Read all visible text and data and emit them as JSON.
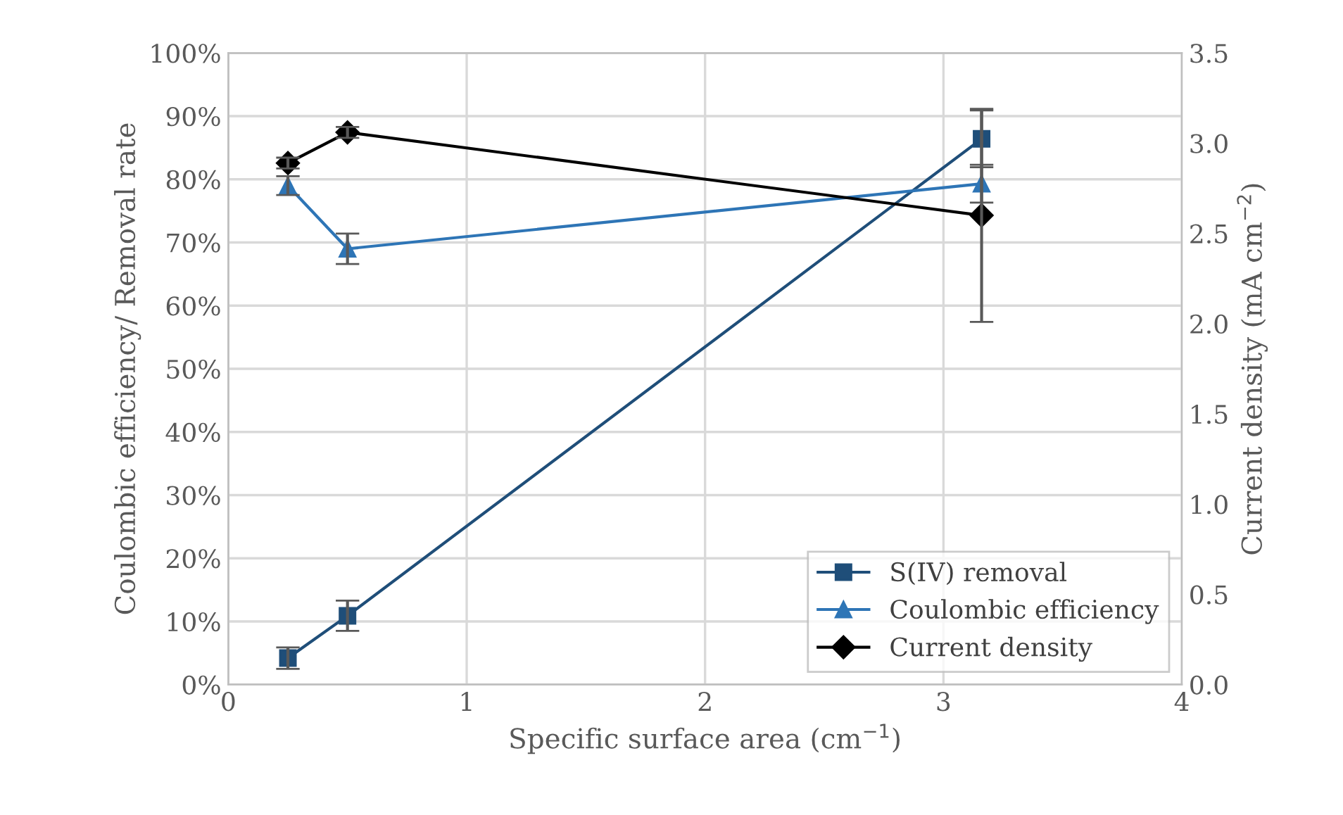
{
  "chart_data": {
    "type": "line",
    "xlabel": "Specific surface area (cm$^{−1}$)",
    "ylabel": "Coulombic efficiency/ Removal rate",
    "y2label": "Current density (mA cm$^{−2}$)",
    "x": [
      0.25,
      0.5,
      3.16
    ],
    "series": [
      {
        "name": "S(IV) removal",
        "color": "#1f4e79",
        "marker": "square",
        "values": [
          4.2,
          10.9,
          86.4
        ],
        "errors": [
          1.7,
          2.4,
          4.5
        ]
      },
      {
        "name": "Coulombic efficiency",
        "color": "#2e75b6",
        "marker": "triangle",
        "values": [
          79,
          69,
          79.3
        ],
        "errors": [
          1.5,
          2.4,
          3
        ]
      },
      {
        "name": "Current density",
        "color": "#000000",
        "marker": "diamond",
        "axis": "y2",
        "values": [
          2.89,
          3.06,
          2.6
        ],
        "errors": [
          0.03,
          0.03,
          0.59
        ]
      }
    ],
    "xlim": [
      0,
      4
    ],
    "xticks": [
      0,
      1,
      2,
      3,
      4
    ],
    "ylim": [
      0,
      100
    ],
    "yticks": [
      {
        "value": 0,
        "label": "0%"
      },
      {
        "value": 10,
        "label": "10%"
      },
      {
        "value": 20,
        "label": "20%"
      },
      {
        "value": 30,
        "label": "30%"
      },
      {
        "value": 40,
        "label": "40%"
      },
      {
        "value": 50,
        "label": "50%"
      },
      {
        "value": 60,
        "label": "60%"
      },
      {
        "value": 70,
        "label": "70%"
      },
      {
        "value": 80,
        "label": "80%"
      },
      {
        "value": 90,
        "label": "90%"
      },
      {
        "value": 100,
        "label": "100%"
      }
    ],
    "y2lim": [
      0,
      3.5
    ],
    "y2ticks": [
      {
        "value": 0,
        "label": "0.0"
      },
      {
        "value": 0.5,
        "label": "0.5"
      },
      {
        "value": 1,
        "label": "1.0"
      },
      {
        "value": 1.5,
        "label": "1.5"
      },
      {
        "value": 2,
        "label": "2.0"
      },
      {
        "value": 2.5,
        "label": "2.5"
      },
      {
        "value": 3,
        "label": "3.0"
      },
      {
        "value": 3.5,
        "label": "3.5"
      }
    ],
    "grid": true,
    "legend": "bottom right",
    "line_style": "solid"
  }
}
